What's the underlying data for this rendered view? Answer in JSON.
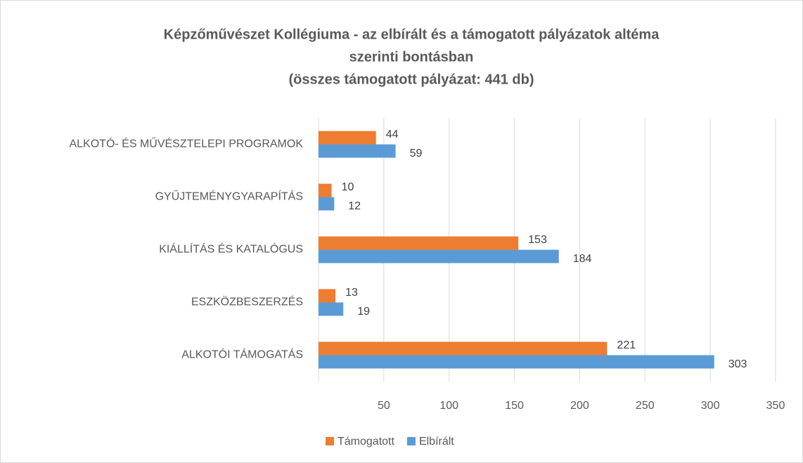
{
  "chart_data": {
    "type": "barh",
    "title": [
      "Képzőművészet Kollégiuma - az elbírált és a támogatott pályázatok altéma",
      "szerinti bontásban",
      "(összes támogatott pályázat: 441 db)"
    ],
    "categories": [
      "ALKOTÓ- ÉS MŰVÉSZTELEPI PROGRAMOK",
      "GYŰJTEMÉNYGYARAPÍTÁS",
      "KIÁLLÍTÁS ÉS KATALÓGUS",
      "ESZKÖZBESZERZÉS",
      "ALKOTÓI TÁMOGATÁS"
    ],
    "series": [
      {
        "name": "Támogatott",
        "color": "#ed7d31",
        "values": [
          44,
          10,
          153,
          13,
          221
        ]
      },
      {
        "name": "Elbírált",
        "color": "#5b9bd5",
        "values": [
          59,
          12,
          184,
          19,
          303
        ]
      }
    ],
    "xlim": [
      0,
      350
    ],
    "xticks": [
      50,
      100,
      150,
      200,
      250,
      300,
      350
    ],
    "grid": true,
    "legend": "bottom"
  }
}
